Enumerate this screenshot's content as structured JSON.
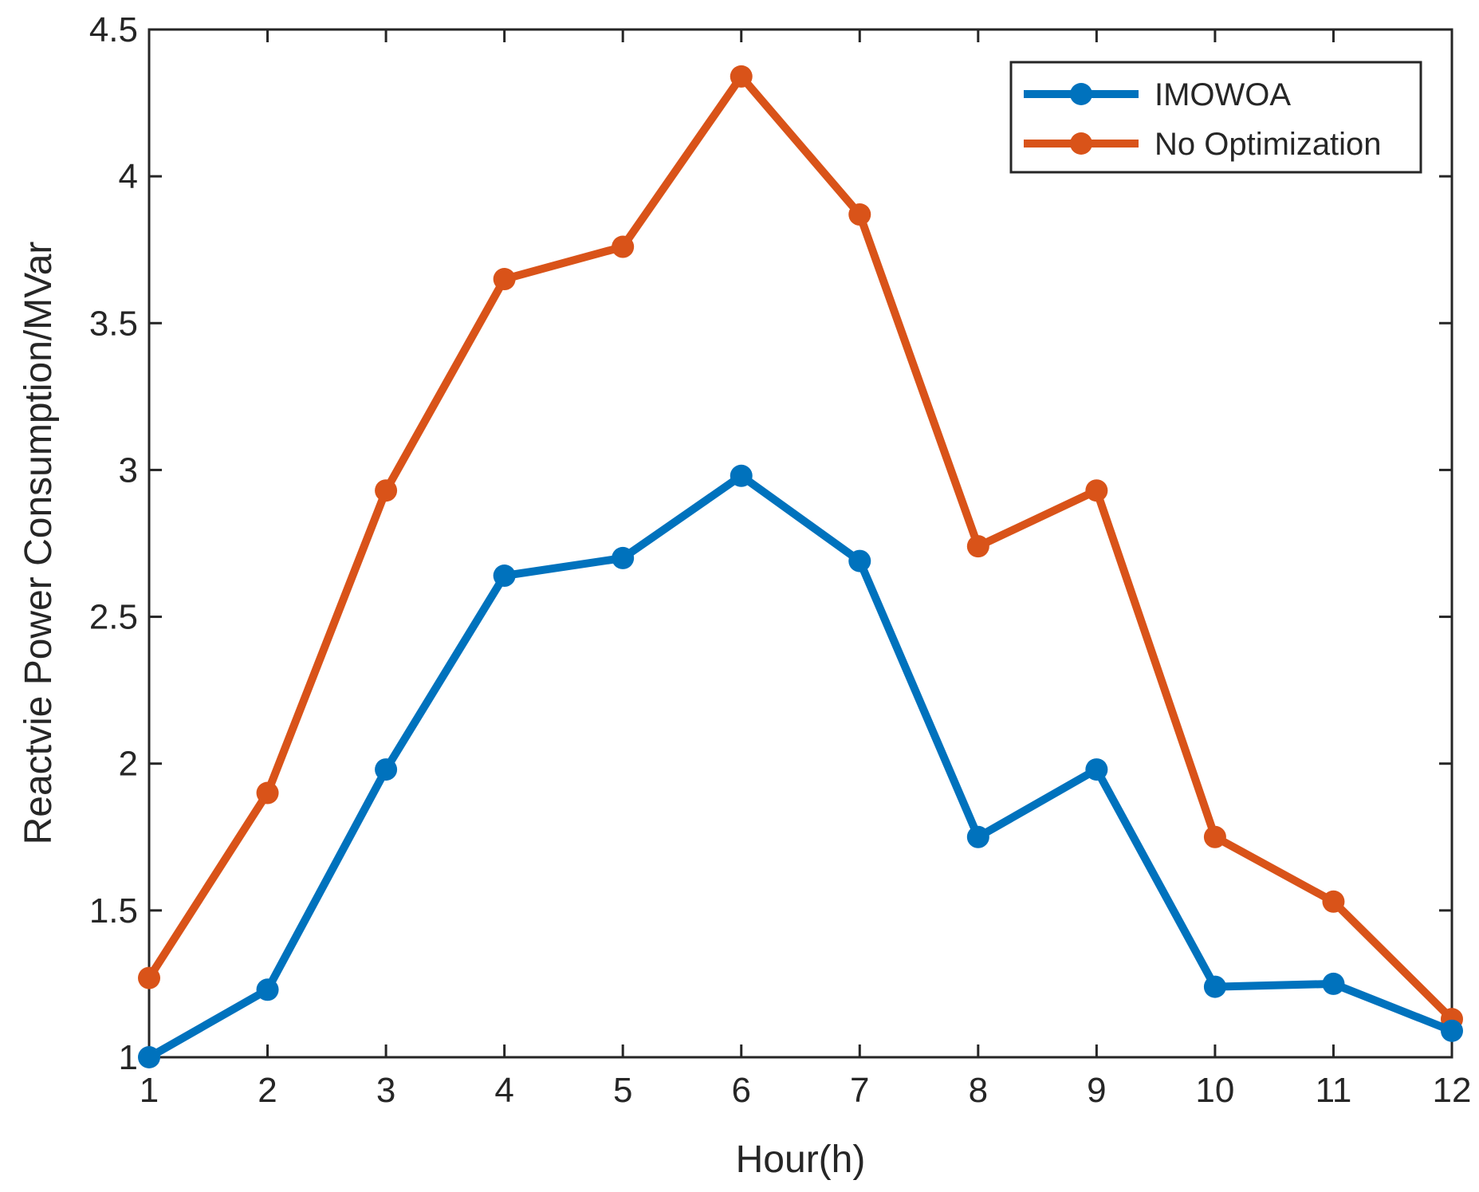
{
  "chart_data": {
    "type": "line",
    "title": "",
    "xlabel": "Hour(h)",
    "ylabel": "Reactvie Power Consumption/MVar",
    "x": [
      1,
      2,
      3,
      4,
      5,
      6,
      7,
      8,
      9,
      10,
      11,
      12
    ],
    "xticks": [
      "1",
      "2",
      "3",
      "4",
      "5",
      "6",
      "7",
      "8",
      "9",
      "10",
      "11",
      "12"
    ],
    "yticks": [
      "1",
      "1.5",
      "2",
      "2.5",
      "3",
      "3.5",
      "4",
      "4.5"
    ],
    "xlim": [
      1,
      12
    ],
    "ylim": [
      1,
      4.5
    ],
    "grid": false,
    "legend_position": "top-right",
    "series": [
      {
        "name": "IMOWOA",
        "color": "#0072BD",
        "values": [
          1.0,
          1.23,
          1.98,
          2.64,
          2.7,
          2.98,
          2.69,
          1.75,
          1.98,
          1.24,
          1.25,
          1.09
        ]
      },
      {
        "name": "No Optimization",
        "color": "#D95319",
        "values": [
          1.27,
          1.9,
          2.93,
          3.65,
          3.76,
          4.34,
          3.87,
          2.74,
          2.93,
          1.75,
          1.53,
          1.13
        ]
      }
    ]
  }
}
